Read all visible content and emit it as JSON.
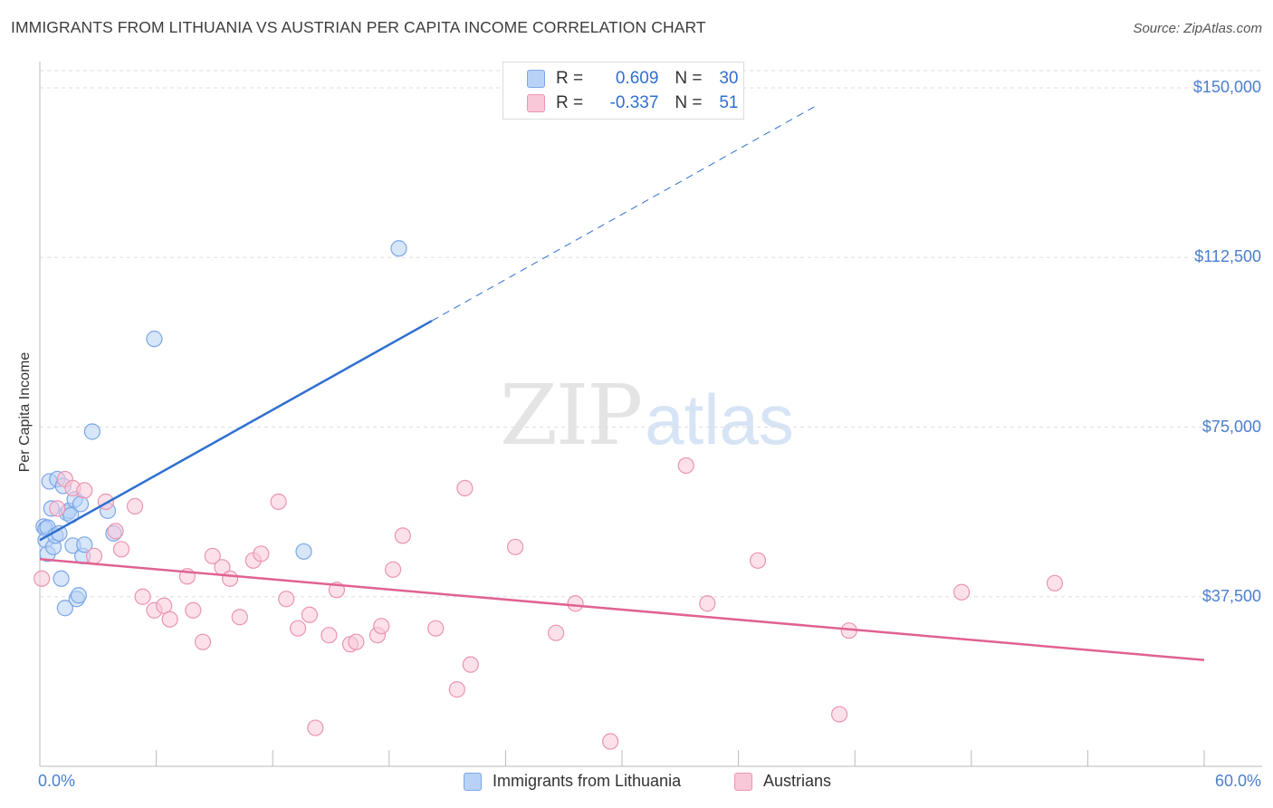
{
  "chart_data": {
    "type": "scatter",
    "title": "IMMIGRANTS FROM LITHUANIA VS AUSTRIAN PER CAPITA INCOME CORRELATION CHART",
    "source": "Source: ZipAtlas.com",
    "ylabel": "Per Capita Income",
    "xlim": [
      0,
      60
    ],
    "ylim": [
      0,
      155000
    ],
    "x_tick_labels": {
      "min": "0.0%",
      "max": "60.0%"
    },
    "y_ticks": [
      {
        "value": 37500,
        "label": "$37,500"
      },
      {
        "value": 75000,
        "label": "$75,000"
      },
      {
        "value": 112500,
        "label": "$112,500"
      },
      {
        "value": 150000,
        "label": "$150,000"
      }
    ],
    "legend": [
      {
        "r_label": "R =",
        "r_value": "0.609",
        "n_label": "N =",
        "n_value": "30"
      },
      {
        "r_label": "R =",
        "r_value": "-0.337",
        "n_label": "N =",
        "n_value": "51"
      }
    ],
    "series": [
      {
        "name": "Immigrants from Lithuania",
        "color": "#7aa6e6",
        "fill": "#b8d2f6",
        "trend": {
          "x0": 0,
          "y0": 50000,
          "x1": 20.2,
          "y1": 98500,
          "dash_to_x": 40,
          "color": "#2f6fd0"
        },
        "points": [
          [
            0.2,
            53000
          ],
          [
            0.3,
            52500
          ],
          [
            0.3,
            50000
          ],
          [
            0.4,
            52800
          ],
          [
            0.4,
            47000
          ],
          [
            0.5,
            63000
          ],
          [
            0.6,
            57000
          ],
          [
            0.7,
            48500
          ],
          [
            0.8,
            51000
          ],
          [
            0.9,
            63500
          ],
          [
            1.0,
            51500
          ],
          [
            1.1,
            41500
          ],
          [
            1.2,
            62000
          ],
          [
            1.3,
            35000
          ],
          [
            1.4,
            56000
          ],
          [
            1.5,
            56500
          ],
          [
            1.6,
            55500
          ],
          [
            1.7,
            48800
          ],
          [
            1.8,
            59000
          ],
          [
            1.9,
            37000
          ],
          [
            2.0,
            37800
          ],
          [
            2.1,
            58000
          ],
          [
            2.2,
            46500
          ],
          [
            2.3,
            49000
          ],
          [
            2.7,
            74000
          ],
          [
            3.5,
            56500
          ],
          [
            3.8,
            51500
          ],
          [
            5.9,
            94500
          ],
          [
            13.6,
            47500
          ],
          [
            18.5,
            114500
          ]
        ]
      },
      {
        "name": "Austrians",
        "color": "#eb94b2",
        "fill": "#f9c8d8",
        "trend": {
          "x0": 0,
          "y0": 45800,
          "x1": 60,
          "y1": 23500,
          "color": "#e06292"
        },
        "points": [
          [
            0.1,
            41500
          ],
          [
            0.9,
            57000
          ],
          [
            1.3,
            63500
          ],
          [
            1.7,
            61500
          ],
          [
            2.3,
            61000
          ],
          [
            2.8,
            46500
          ],
          [
            3.4,
            58500
          ],
          [
            3.9,
            52000
          ],
          [
            4.2,
            48000
          ],
          [
            4.9,
            57500
          ],
          [
            5.3,
            37500
          ],
          [
            5.9,
            34500
          ],
          [
            6.4,
            35500
          ],
          [
            6.7,
            32500
          ],
          [
            7.6,
            42000
          ],
          [
            7.9,
            34500
          ],
          [
            8.4,
            27500
          ],
          [
            8.9,
            46500
          ],
          [
            9.4,
            44000
          ],
          [
            9.8,
            41500
          ],
          [
            10.3,
            33000
          ],
          [
            11.0,
            45500
          ],
          [
            11.4,
            47000
          ],
          [
            12.3,
            58500
          ],
          [
            12.7,
            37000
          ],
          [
            13.3,
            30500
          ],
          [
            13.9,
            33500
          ],
          [
            14.2,
            8500
          ],
          [
            14.9,
            29000
          ],
          [
            15.3,
            39000
          ],
          [
            16.0,
            27000
          ],
          [
            16.3,
            27500
          ],
          [
            17.4,
            29000
          ],
          [
            17.6,
            31000
          ],
          [
            18.2,
            43500
          ],
          [
            18.7,
            51000
          ],
          [
            20.4,
            30500
          ],
          [
            21.5,
            17000
          ],
          [
            21.9,
            61500
          ],
          [
            22.2,
            22500
          ],
          [
            24.5,
            48500
          ],
          [
            26.6,
            29500
          ],
          [
            27.6,
            36000
          ],
          [
            29.4,
            5500
          ],
          [
            33.3,
            66500
          ],
          [
            34.4,
            36000
          ],
          [
            37.0,
            45500
          ],
          [
            41.2,
            11500
          ],
          [
            41.7,
            30000
          ],
          [
            47.5,
            38500
          ],
          [
            52.3,
            40500
          ]
        ]
      }
    ]
  }
}
